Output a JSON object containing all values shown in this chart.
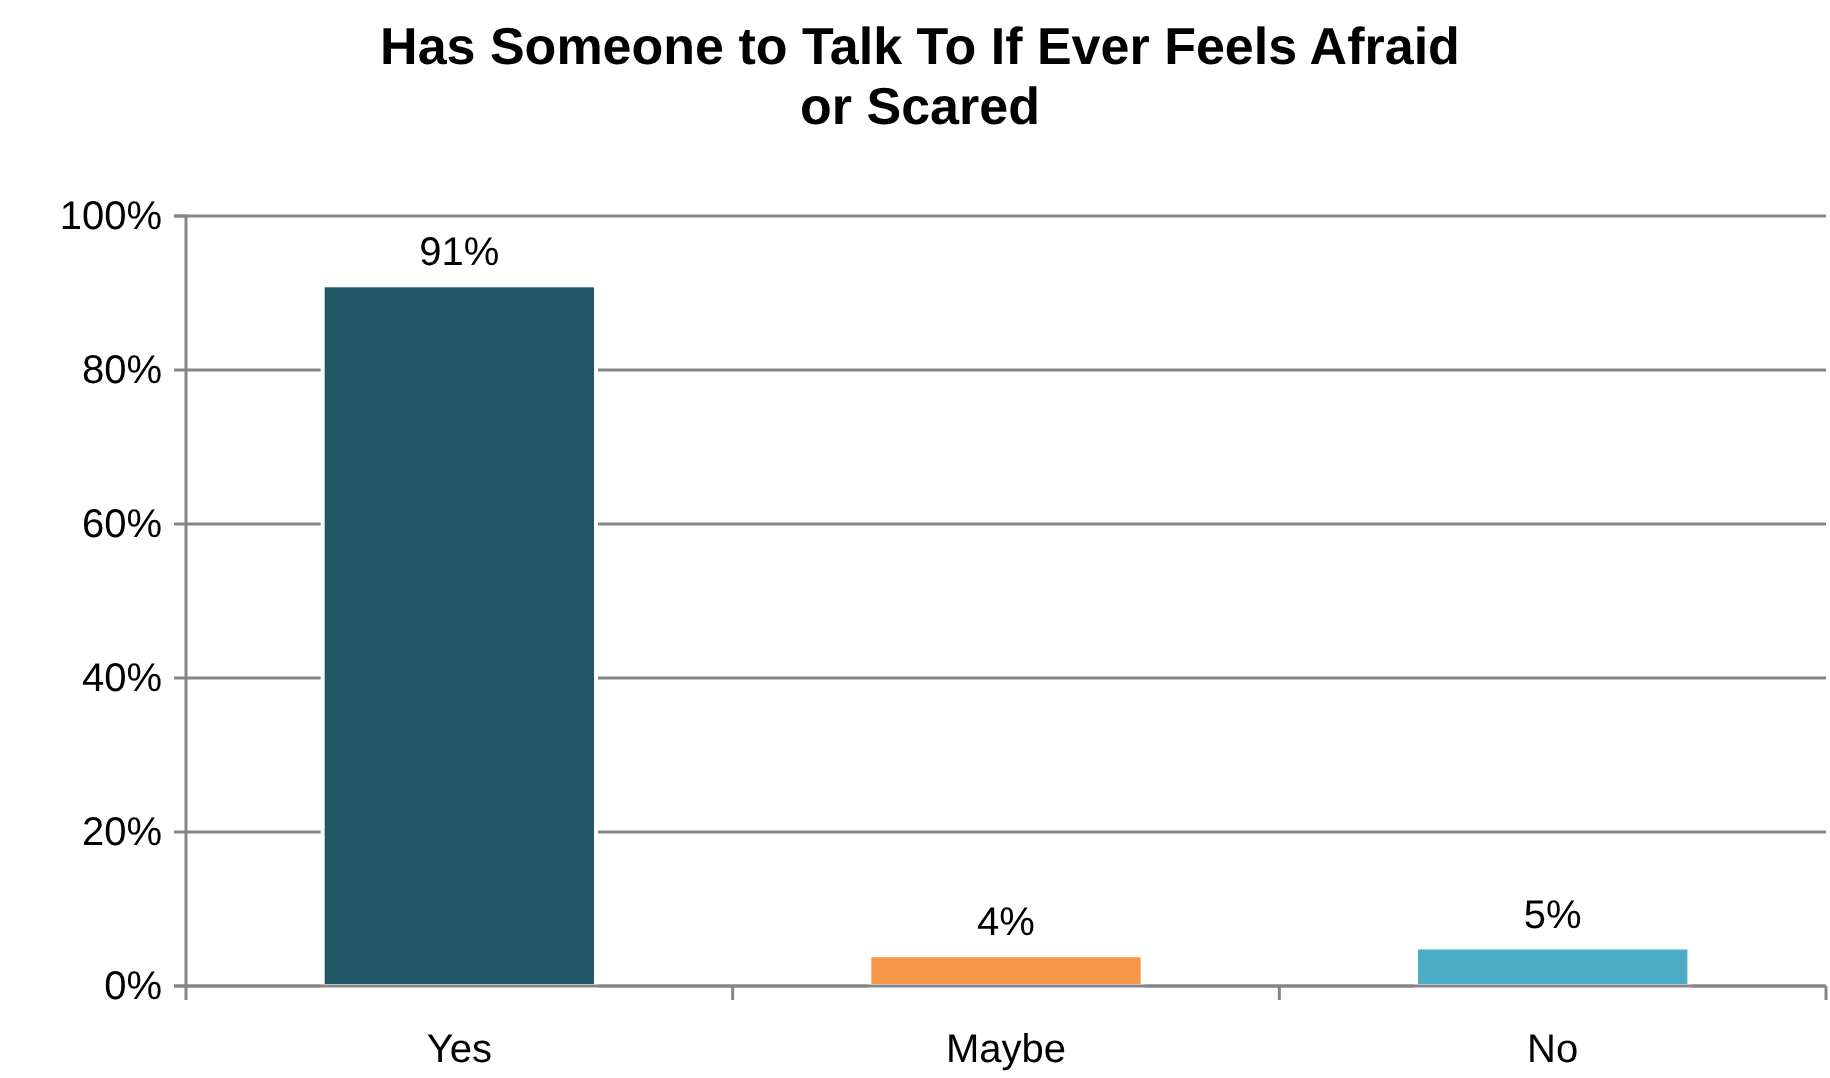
{
  "chart_data": {
    "type": "bar",
    "title": "Has Someone to Talk To If Ever Feels Afraid or Scared",
    "categories": [
      "Yes",
      "Maybe",
      "No"
    ],
    "values": [
      91,
      4,
      5
    ],
    "colors": [
      "#215868",
      "#f79646",
      "#4bacc6"
    ],
    "value_labels": [
      "91%",
      "4%",
      "5%"
    ],
    "ylim": [
      0,
      100
    ],
    "yticks": [
      {
        "value": 0,
        "label": "0%"
      },
      {
        "value": 20,
        "label": "20%"
      },
      {
        "value": 40,
        "label": "40%"
      },
      {
        "value": 60,
        "label": "60%"
      },
      {
        "value": 80,
        "label": "80%"
      },
      {
        "value": 100,
        "label": "100%"
      }
    ],
    "grid": "y"
  }
}
